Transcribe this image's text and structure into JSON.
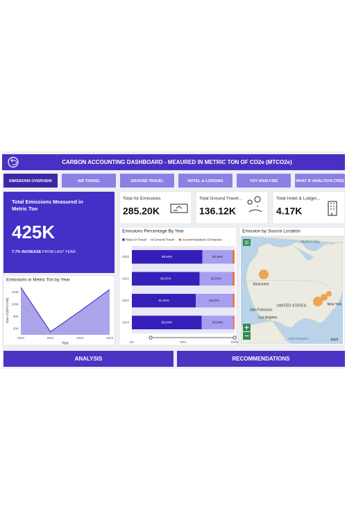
{
  "header": {
    "title": "CARBON ACCOUNTING DASHBOARD - MEAURED IN METRIC TON OF CO2e (MTCO2e)"
  },
  "nav": [
    "EMISSIONS OVERVIEW",
    "AIR TRAVEL",
    "GROUND TRAVEL",
    "HOTEL & LODGING",
    "YOY ANALYSIS",
    "WHAT IF ANALYSYS (TBD)"
  ],
  "summary": {
    "title": "Total Emissions Measured in Metric Ton",
    "value": "425K",
    "change": "7.7% INCREASE",
    "change_note": "FROM LAST YEAR"
  },
  "kpis": [
    {
      "label": "Total Air Emissions",
      "value": "285.20K"
    },
    {
      "label": "Total Ground Travel...",
      "value": "136.12K"
    },
    {
      "label": "Total Hotel & Lodgin...",
      "value": "4.17K"
    }
  ],
  "chart_data": [
    {
      "type": "area",
      "title": "Emissions in Metric Ton by Year",
      "x_label": "Year",
      "y_label": "Sum of [MTCO2E]",
      "x": [
        2020,
        2021,
        2022,
        2023
      ],
      "values": [
        128000,
        55000,
        89000,
        124600
      ],
      "color": "#8f86e2",
      "line_color": "#4a3fc8",
      "xlim": [
        2020,
        2023
      ],
      "xticks": [
        2020,
        2021,
        2022,
        2023
      ],
      "ylim": [
        50000,
        130000
      ],
      "yticks": [
        {
          "value": 60000,
          "label": "60K"
        },
        {
          "value": 80000,
          "label": "80K"
        },
        {
          "value": 100000,
          "label": "100K"
        },
        {
          "value": 120000,
          "label": "120K"
        }
      ]
    },
    {
      "type": "stacked-bar",
      "title": "Emissions Percentage By Year",
      "categories": [
        "2020",
        "2021",
        "2022",
        "2023"
      ],
      "series": [
        {
          "name": "Total Air Travel",
          "color": "#3420b8",
          "values": [
            68.64,
            65.97,
            62.32,
            68.04
          ],
          "value_labels": [
            "68.64%",
            "65.97%",
            "62.32%",
            "68.04%"
          ]
        },
        {
          "name": "Ground Travel",
          "color": "#a69ef0",
          "values": [
            29.39,
            32.04,
            35.87,
            30.84
          ],
          "value_labels": [
            "29.39%",
            "32.04%",
            "35.87%",
            "30.84%"
          ]
        },
        {
          "name": "Accommodations Emissions",
          "color": "#e8703a",
          "values": [
            1.97,
            1.99,
            1.81,
            1.12
          ]
        }
      ],
      "xlim": [
        0,
        100
      ],
      "xticks": [
        {
          "value": 0,
          "label": "0%"
        },
        {
          "value": 50,
          "label": "50%"
        },
        {
          "value": 100,
          "label": "100%"
        }
      ]
    }
  ],
  "map": {
    "title": "Emission by Source Location",
    "labels": [
      "Hudson Bay",
      "Vancouver",
      "UNITED STATES",
      "San Francisco",
      "Los Angeles",
      "New York",
      "Gulf of Mexico",
      "esri"
    ]
  },
  "buttons": [
    "ANALYSIS",
    "RECOMMENDATIONS"
  ]
}
